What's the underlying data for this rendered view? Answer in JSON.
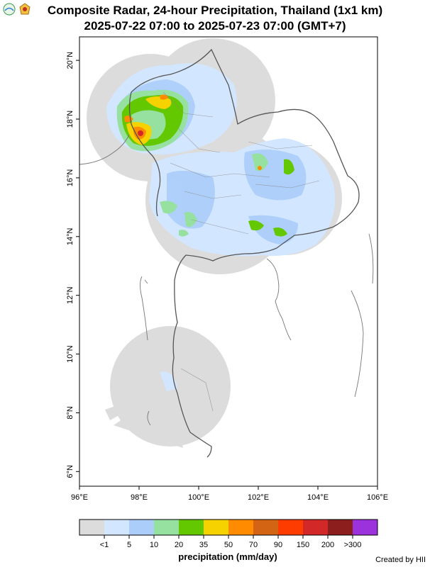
{
  "header": {
    "title_line1": "Composite Radar, 24-hour Precipitation, Thailand (1x1 km)",
    "title_line2": "2025-07-22 07:00 to 2025-07-23 07:00 (GMT+7)",
    "logos": [
      "hii-logo-icon",
      "emblem-logo-icon"
    ]
  },
  "map": {
    "lon_range": [
      96,
      106
    ],
    "lat_range": [
      5.5,
      20.8
    ],
    "lon_ticks": [
      {
        "value": 96,
        "label": "96°E"
      },
      {
        "value": 98,
        "label": "98°E"
      },
      {
        "value": 100,
        "label": "100°E"
      },
      {
        "value": 102,
        "label": "102°E"
      },
      {
        "value": 104,
        "label": "104°E"
      },
      {
        "value": 106,
        "label": "106°E"
      }
    ],
    "lat_ticks": [
      {
        "value": 6,
        "label": "6°N"
      },
      {
        "value": 8,
        "label": "8°N"
      },
      {
        "value": 10,
        "label": "10°N"
      },
      {
        "value": 12,
        "label": "12°N"
      },
      {
        "value": 14,
        "label": "14°N"
      },
      {
        "value": 16,
        "label": "16°N"
      },
      {
        "value": 18,
        "label": "18°N"
      },
      {
        "value": 20,
        "label": "20°N"
      }
    ]
  },
  "colorbar": {
    "title": "precipitation (mm/day)",
    "colors": [
      "#dcdcdc",
      "#d2e6ff",
      "#aacdfa",
      "#96e1a0",
      "#64c800",
      "#f5d200",
      "#ff8c00",
      "#d26414",
      "#ff3c00",
      "#d22828",
      "#8c1e1e",
      "#9b32dc"
    ],
    "labels": [
      "<1",
      "5",
      "10",
      "20",
      "35",
      "50",
      "70",
      "90",
      "150",
      "200",
      ">300"
    ]
  },
  "credit": "Created by HII"
}
